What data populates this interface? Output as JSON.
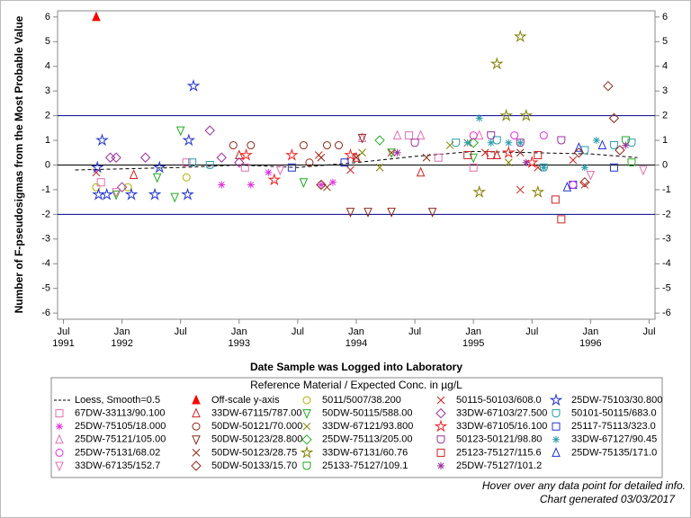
{
  "chart_data": {
    "type": "scatter",
    "y_label": "Number of F-pseudosigmas from the Most Probable Value",
    "x_label": "Date Sample was Logged into Laboratory",
    "legend_title": "Reference Material / Expected Conc. in µg/L",
    "footnotes": [
      "Hover over any data point for detailed info.",
      "Chart generated 03/03/2017"
    ],
    "xlim": [
      1991.45,
      1996.55
    ],
    "ylim": [
      -6.25,
      6.25
    ],
    "y2lim": [
      -6.25,
      6.25
    ],
    "xticks": [
      {
        "value": 1991.5,
        "label": "Jul\n1991"
      },
      {
        "value": 1992.0,
        "label": "Jan\n1992"
      },
      {
        "value": 1992.5,
        "label": "Jul"
      },
      {
        "value": 1993.0,
        "label": "Jan\n1993"
      },
      {
        "value": 1993.5,
        "label": "Jul"
      },
      {
        "value": 1994.0,
        "label": "Jan\n1994"
      },
      {
        "value": 1994.5,
        "label": "Jul"
      },
      {
        "value": 1995.0,
        "label": "Jan\n1995"
      },
      {
        "value": 1995.5,
        "label": "Jul"
      },
      {
        "value": 1996.0,
        "label": "Jan\n1996"
      },
      {
        "value": 1996.5,
        "label": "Jul"
      }
    ],
    "yticks": [
      -6,
      -5,
      -4,
      -3,
      -2,
      -1,
      0,
      1,
      2,
      3,
      4,
      5,
      6
    ],
    "y2ticks": [
      -6,
      -5,
      -4,
      -3,
      -2,
      -1,
      0,
      1,
      2,
      3,
      4,
      5,
      6
    ],
    "reference_lines": [
      {
        "value": -2,
        "color": "#00008b"
      },
      {
        "value": 0,
        "color": "#000000"
      },
      {
        "value": 2,
        "color": "#00008b"
      }
    ],
    "series": [
      {
        "name": "Loess, Smooth=0.5",
        "marker": "line",
        "color": "#000000",
        "x": [
          1991.6,
          1992.5,
          1993.0,
          1993.5,
          1994.0,
          1994.5,
          1995.0,
          1995.5,
          1996.0,
          1996.4
        ],
        "values": [
          -0.2,
          -0.1,
          0.0,
          -0.1,
          0.1,
          0.35,
          0.55,
          0.5,
          0.45,
          0.3
        ]
      },
      {
        "name": "Off-scale y-axis",
        "marker": "filled-triangle",
        "color": "#ff0000",
        "x": [
          1991.78
        ],
        "values": [
          6
        ]
      },
      {
        "name": "5011/5007/38.200",
        "marker": "circle",
        "color": "#b0b000",
        "x": [
          1991.78,
          1992.05,
          1992.55
        ],
        "values": [
          -0.9,
          -0.9,
          -0.5
        ]
      },
      {
        "name": "50115-50103/608.0",
        "marker": "x",
        "color": "#cc2222",
        "x": [
          1991.78,
          1993.68,
          1993.95,
          1994.3,
          1994.95,
          1995.1,
          1995.4,
          1995.55,
          1995.85,
          1995.95
        ],
        "values": [
          -0.3,
          0.4,
          -0.2,
          0.5,
          0.9,
          0.5,
          -1.0,
          -0.1,
          0.2,
          -0.8
        ]
      },
      {
        "name": "25DW-75103/30.800",
        "marker": "star",
        "color": "#2233cc",
        "x": [
          1991.83,
          1991.8,
          1991.79,
          1991.87,
          1992.08,
          1992.28,
          1992.32,
          1992.56,
          1992.57,
          1992.61
        ],
        "values": [
          1.0,
          -1.2,
          -0.1,
          -1.2,
          -1.2,
          -1.2,
          -0.1,
          -1.2,
          1.0,
          3.2
        ]
      },
      {
        "name": "67DW-33113/90.100",
        "marker": "square",
        "color": "#e070b0",
        "x": [
          1991.82,
          1992.55,
          1993.05,
          1994.45,
          1994.7,
          1995.0
        ],
        "values": [
          -0.7,
          0.1,
          -0.1,
          1.2,
          0.3,
          -0.1
        ]
      },
      {
        "name": "33DW-67115/787.00",
        "marker": "triangle",
        "color": "#cc2222",
        "x": [
          1992.1,
          1993.0,
          1994.0,
          1994.55,
          1995.2
        ],
        "values": [
          -0.4,
          0.4,
          0.3,
          -0.3,
          0.4
        ]
      },
      {
        "name": "50DW-50115/588.00",
        "marker": "triangle-down",
        "color": "#22aa22",
        "x": [
          1991.95,
          1992.3,
          1992.45,
          1992.5,
          1993.55,
          1994.3,
          1995.0
        ],
        "values": [
          -1.2,
          -0.5,
          -1.3,
          1.4,
          -0.7,
          0.5,
          0.3
        ]
      },
      {
        "name": "33DW-67103/27.500",
        "marker": "diamond",
        "color": "#993399",
        "x": [
          1991.9,
          1991.95,
          1992.0,
          1992.2,
          1992.75,
          1992.85,
          1993.0
        ],
        "values": [
          0.3,
          0.3,
          -0.9,
          0.3,
          1.4,
          0.3,
          0.1
        ]
      },
      {
        "name": "50101-50115/683.0",
        "marker": "shield",
        "color": "#2a9aaa",
        "x": [
          1992.6,
          1992.75,
          1994.85,
          1995.2,
          1995.6,
          1995.95,
          1996.2,
          1996.35
        ],
        "values": [
          0.1,
          0.0,
          0.9,
          1.0,
          -0.1,
          0.6,
          0.8,
          0.9
        ]
      },
      {
        "name": "25DW-75105/18.000",
        "marker": "asterisk",
        "color": "#e030e0",
        "x": [
          1992.85,
          1993.1,
          1993.25,
          1993.7,
          1993.8
        ],
        "values": [
          -0.8,
          -0.8,
          -0.3,
          -0.8,
          -0.7
        ]
      },
      {
        "name": "50DW-50121/70.000",
        "marker": "circle",
        "color": "#8b2a1a",
        "x": [
          1992.95,
          1993.1,
          1993.55,
          1993.6,
          1993.75,
          1993.85
        ],
        "values": [
          0.8,
          0.8,
          0.8,
          0.1,
          0.8,
          0.8
        ]
      },
      {
        "name": "33DW-67121/93.800",
        "marker": "x",
        "color": "#808000",
        "x": [
          1994.05,
          1994.2,
          1994.8,
          1995.3
        ],
        "values": [
          0.5,
          -0.1,
          0.8,
          0.1
        ]
      },
      {
        "name": "33DW-67105/16.100",
        "marker": "star",
        "color": "#ee2222",
        "x": [
          1993.06,
          1993.3,
          1993.45,
          1993.95,
          1995.3,
          1995.5
        ],
        "values": [
          0.4,
          -0.6,
          0.4,
          0.4,
          0.5,
          0.1
        ]
      },
      {
        "name": "25117-75113/323.0",
        "marker": "square",
        "color": "#2233cc",
        "x": [
          1993.45,
          1993.9,
          1995.85,
          1996.2
        ],
        "values": [
          -0.1,
          0.1,
          -0.8,
          -0.1
        ]
      },
      {
        "name": "25DW-75121/105.00",
        "marker": "triangle",
        "color": "#e070b0",
        "x": [
          1994.05,
          1994.35,
          1994.55,
          1995.05
        ],
        "values": [
          1.1,
          1.2,
          1.2,
          1.2
        ]
      },
      {
        "name": "50DW-50123/28.800",
        "marker": "triangle-down",
        "color": "#8b2a1a",
        "x": [
          1993.95,
          1994.05,
          1994.1,
          1994.3,
          1994.65
        ],
        "values": [
          -1.9,
          1.1,
          -1.9,
          -1.9,
          -1.9
        ]
      },
      {
        "name": "25DW-75113/205.00",
        "marker": "diamond",
        "color": "#22aa22",
        "x": [
          1994.2,
          1995.0
        ],
        "values": [
          1.0,
          0.9
        ]
      },
      {
        "name": "50123-50121/98.80",
        "marker": "shield",
        "color": "#993399",
        "x": [
          1994.5,
          1995.15,
          1995.4,
          1995.75
        ],
        "values": [
          0.9,
          1.2,
          0.9,
          1.0
        ]
      },
      {
        "name": "33DW-67127/90.45",
        "marker": "asterisk",
        "color": "#2a9aaa",
        "x": [
          1994.95,
          1995.05,
          1995.15,
          1995.3,
          1995.4,
          1995.6,
          1995.95,
          1996.05
        ],
        "values": [
          0.9,
          1.9,
          0.9,
          0.9,
          0.9,
          -0.1,
          -0.1,
          1.0
        ]
      },
      {
        "name": "25DW-75131/68.02",
        "marker": "circle",
        "color": "#e030e0",
        "x": [
          1995.0,
          1995.35,
          1995.6,
          1995.85
        ],
        "values": [
          1.2,
          1.2,
          1.2,
          -0.8
        ]
      },
      {
        "name": "50DW-50123/28.75",
        "marker": "x",
        "color": "#8b2a1a",
        "x": [
          1993.7,
          1993.75,
          1994.0,
          1994.6,
          1995.4
        ],
        "values": [
          0.3,
          -0.9,
          0.3,
          0.3,
          0.5
        ]
      },
      {
        "name": "33DW-67131/60.76",
        "marker": "star",
        "color": "#808000",
        "x": [
          1995.05,
          1995.2,
          1995.4,
          1995.28,
          1995.45,
          1995.55
        ],
        "values": [
          -1.1,
          4.1,
          5.2,
          2.0,
          2.0,
          -1.1
        ]
      },
      {
        "name": "25123-75127/115.6",
        "marker": "square",
        "color": "#cc2222",
        "x": [
          1994.95,
          1995.15,
          1995.55,
          1995.7,
          1995.75
        ],
        "values": [
          0.4,
          0.4,
          0.4,
          -1.4,
          -2.2
        ]
      },
      {
        "name": "25DW-75135/171.0",
        "marker": "triangle",
        "color": "#2233cc",
        "x": [
          1995.8,
          1995.9,
          1996.1
        ],
        "values": [
          -0.9,
          0.7,
          0.8
        ]
      },
      {
        "name": "33DW-67135/152.7",
        "marker": "triangle-down",
        "color": "#e070b0",
        "x": [
          1991.95,
          1993.35,
          1996.0,
          1996.45
        ],
        "values": [
          -1.1,
          -0.2,
          -0.4,
          -0.2
        ]
      },
      {
        "name": "50DW-50133/15.70",
        "marker": "diamond",
        "color": "#8b2a1a",
        "x": [
          1993.7,
          1995.9,
          1995.95,
          1996.15,
          1996.2,
          1996.25
        ],
        "values": [
          -0.8,
          0.5,
          -0.7,
          3.2,
          1.9,
          0.6
        ]
      },
      {
        "name": "25133-75127/109.1",
        "marker": "shield",
        "color": "#22aa22",
        "x": [
          1996.35,
          1996.3
        ],
        "values": [
          0.1,
          1.0
        ]
      },
      {
        "name": "25DW-75127/101.2",
        "marker": "asterisk",
        "color": "#993399",
        "x": [
          1994.35,
          1995.45,
          1996.3
        ],
        "values": [
          0.5,
          0.1,
          0.8
        ]
      }
    ]
  }
}
